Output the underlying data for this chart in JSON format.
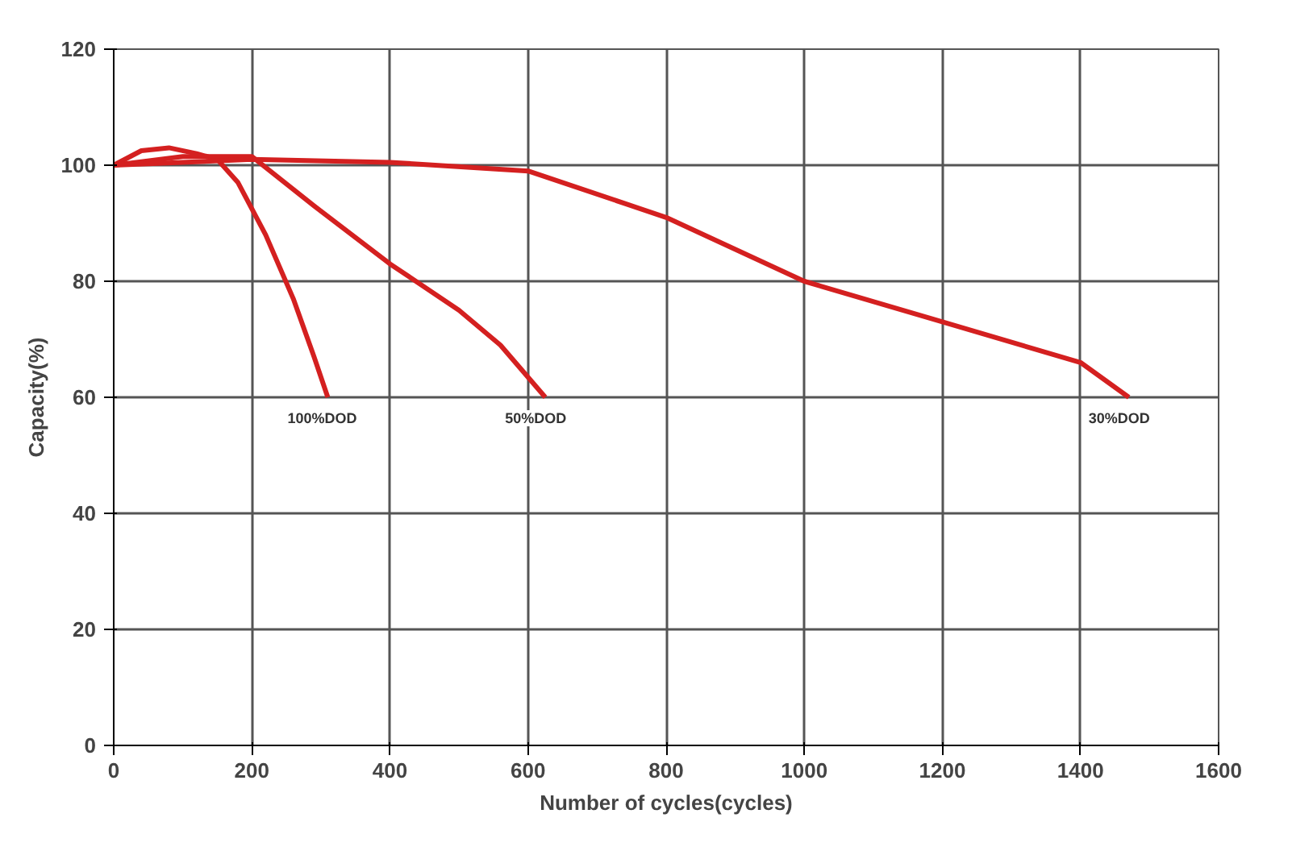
{
  "chart_data": {
    "type": "line",
    "xlabel": "Number of cycles(cycles)",
    "ylabel": "Capacity(%)",
    "xlim": [
      0,
      1600
    ],
    "ylim": [
      0,
      120
    ],
    "xticks": [
      0,
      200,
      400,
      600,
      800,
      1000,
      1200,
      1400,
      1600
    ],
    "yticks": [
      0,
      20,
      40,
      60,
      80,
      100,
      120
    ],
    "grid": true,
    "marker": "none",
    "line_style": "solid",
    "series": [
      {
        "name": "100%DOD",
        "color": "#d42020",
        "x": [
          0,
          40,
          80,
          120,
          150,
          180,
          220,
          260,
          290,
          310
        ],
        "values": [
          100,
          102.5,
          103,
          102,
          101,
          97,
          88,
          77,
          67,
          60
        ]
      },
      {
        "name": "50%DOD",
        "color": "#d42020",
        "x": [
          0,
          100,
          200,
          290,
          400,
          500,
          560,
          625
        ],
        "values": [
          100,
          101.5,
          101.5,
          93,
          83,
          75,
          69,
          60
        ]
      },
      {
        "name": "30%DOD",
        "color": "#d42020",
        "x": [
          0,
          200,
          400,
          600,
          800,
          1000,
          1200,
          1400,
          1470
        ],
        "values": [
          100,
          101,
          100.5,
          99,
          91,
          80,
          73,
          66,
          60
        ]
      }
    ]
  }
}
